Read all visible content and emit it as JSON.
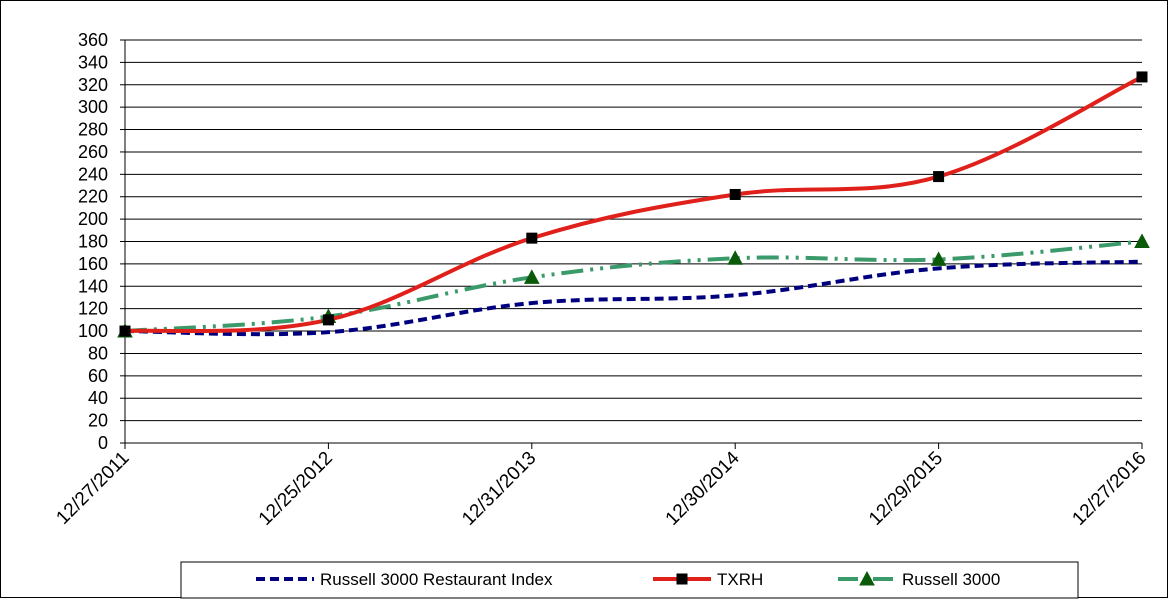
{
  "chart_data": {
    "type": "line",
    "title": "",
    "xlabel": "",
    "ylabel": "",
    "categories": [
      "12/27/2011",
      "12/25/2012",
      "12/31/2013",
      "12/30/2014",
      "12/29/2015",
      "12/27/2016"
    ],
    "ylim": [
      0,
      360
    ],
    "yticks": [
      0,
      20,
      40,
      60,
      80,
      100,
      120,
      140,
      160,
      180,
      200,
      220,
      240,
      260,
      280,
      300,
      320,
      340,
      360
    ],
    "grid": true,
    "legend_position": "bottom",
    "series": [
      {
        "name": "Russell 3000 Restaurant Index",
        "color": "#00007f",
        "style": "dashed",
        "marker": "none",
        "values": [
          100,
          99,
          125,
          132,
          156,
          162
        ]
      },
      {
        "name": "TXRH",
        "color": "#e0201b",
        "style": "solid",
        "marker": "square",
        "values": [
          100,
          110,
          183,
          222,
          238,
          327
        ]
      },
      {
        "name": "Russell 3000",
        "color": "#3a9a6a",
        "style": "dash-dot-dot",
        "marker": "triangle",
        "values": [
          100,
          113,
          148,
          165,
          164,
          180
        ]
      }
    ]
  }
}
